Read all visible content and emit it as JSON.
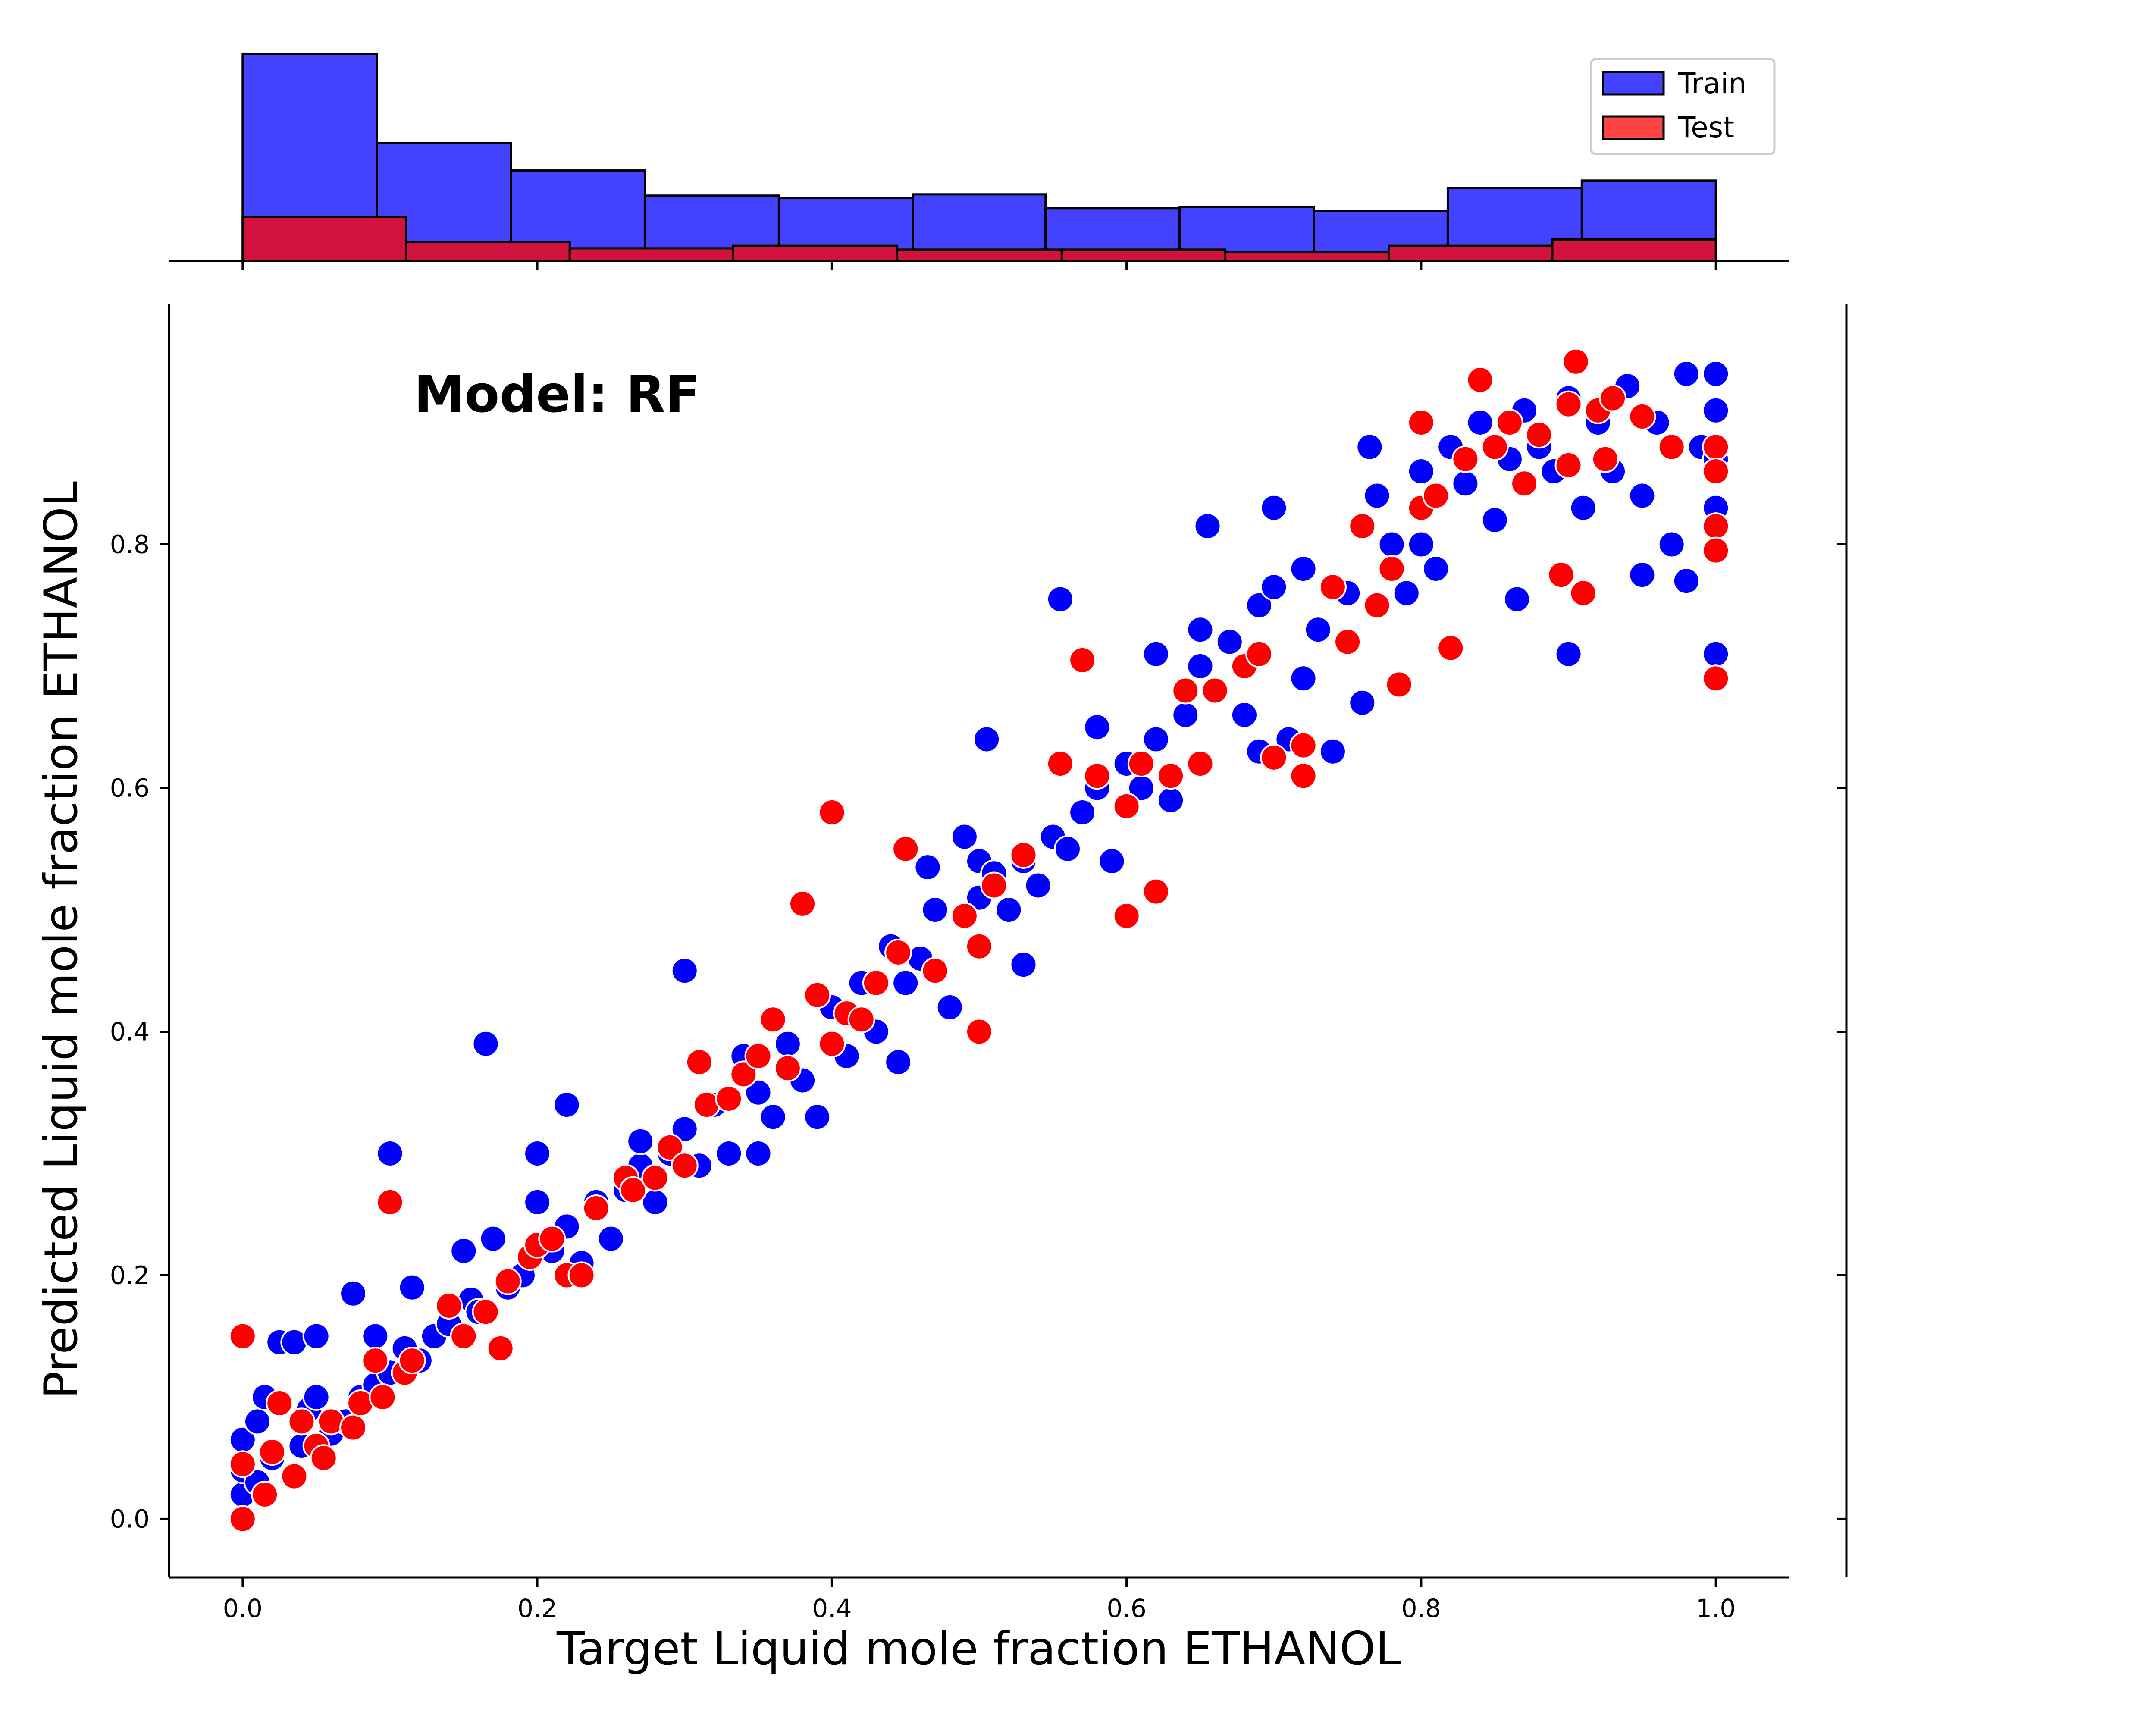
{
  "chart_data": {
    "type": "scatter",
    "annotation": "Model: RF",
    "xlabel": "Target Liquid mole fraction ETHANOL",
    "ylabel": "Predicted Liquid mole fraction ETHANOL",
    "xlim": [
      -0.05,
      1.05
    ],
    "ylim": [
      -0.048,
      0.997
    ],
    "x_ticks": [
      "0.0",
      "0.2",
      "0.4",
      "0.6",
      "0.8",
      "1.0"
    ],
    "y_ticks": [
      "0.0",
      "0.2",
      "0.4",
      "0.6",
      "0.8"
    ],
    "grid": false,
    "legend": {
      "position": "top-right",
      "entries": [
        "Train",
        "Test"
      ]
    },
    "colors": {
      "train": "#0000ff",
      "test": "#ff0000",
      "train_hist": "#4343ff",
      "test_hist": "#d3133e"
    },
    "series": [
      {
        "name": "Train",
        "points": [
          [
            0.0,
            0.02
          ],
          [
            0.0,
            0.04
          ],
          [
            0.0,
            0.065
          ],
          [
            0.01,
            0.03
          ],
          [
            0.01,
            0.08
          ],
          [
            0.015,
            0.1
          ],
          [
            0.02,
            0.05
          ],
          [
            0.025,
            0.145
          ],
          [
            0.035,
            0.145
          ],
          [
            0.04,
            0.06
          ],
          [
            0.045,
            0.09
          ],
          [
            0.05,
            0.1
          ],
          [
            0.05,
            0.15
          ],
          [
            0.06,
            0.07
          ],
          [
            0.07,
            0.08
          ],
          [
            0.075,
            0.185
          ],
          [
            0.08,
            0.1
          ],
          [
            0.09,
            0.15
          ],
          [
            0.09,
            0.11
          ],
          [
            0.1,
            0.3
          ],
          [
            0.1,
            0.12
          ],
          [
            0.11,
            0.14
          ],
          [
            0.115,
            0.19
          ],
          [
            0.12,
            0.13
          ],
          [
            0.13,
            0.15
          ],
          [
            0.14,
            0.16
          ],
          [
            0.15,
            0.22
          ],
          [
            0.155,
            0.18
          ],
          [
            0.16,
            0.17
          ],
          [
            0.165,
            0.39
          ],
          [
            0.17,
            0.23
          ],
          [
            0.18,
            0.19
          ],
          [
            0.19,
            0.2
          ],
          [
            0.2,
            0.3
          ],
          [
            0.2,
            0.26
          ],
          [
            0.21,
            0.22
          ],
          [
            0.22,
            0.34
          ],
          [
            0.22,
            0.24
          ],
          [
            0.23,
            0.21
          ],
          [
            0.24,
            0.26
          ],
          [
            0.25,
            0.23
          ],
          [
            0.26,
            0.27
          ],
          [
            0.27,
            0.29
          ],
          [
            0.27,
            0.31
          ],
          [
            0.28,
            0.26
          ],
          [
            0.29,
            0.3
          ],
          [
            0.3,
            0.45
          ],
          [
            0.3,
            0.32
          ],
          [
            0.31,
            0.29
          ],
          [
            0.32,
            0.34
          ],
          [
            0.33,
            0.3
          ],
          [
            0.34,
            0.38
          ],
          [
            0.35,
            0.3
          ],
          [
            0.35,
            0.35
          ],
          [
            0.36,
            0.33
          ],
          [
            0.37,
            0.39
          ],
          [
            0.38,
            0.36
          ],
          [
            0.39,
            0.33
          ],
          [
            0.4,
            0.42
          ],
          [
            0.41,
            0.38
          ],
          [
            0.42,
            0.44
          ],
          [
            0.43,
            0.4
          ],
          [
            0.44,
            0.47
          ],
          [
            0.445,
            0.375
          ],
          [
            0.45,
            0.44
          ],
          [
            0.46,
            0.46
          ],
          [
            0.465,
            0.535
          ],
          [
            0.47,
            0.5
          ],
          [
            0.48,
            0.42
          ],
          [
            0.49,
            0.56
          ],
          [
            0.5,
            0.54
          ],
          [
            0.5,
            0.51
          ],
          [
            0.505,
            0.64
          ],
          [
            0.51,
            0.53
          ],
          [
            0.52,
            0.5
          ],
          [
            0.53,
            0.455
          ],
          [
            0.53,
            0.54
          ],
          [
            0.54,
            0.52
          ],
          [
            0.55,
            0.56
          ],
          [
            0.555,
            0.755
          ],
          [
            0.56,
            0.55
          ],
          [
            0.57,
            0.58
          ],
          [
            0.58,
            0.6
          ],
          [
            0.58,
            0.65
          ],
          [
            0.59,
            0.54
          ],
          [
            0.6,
            0.62
          ],
          [
            0.61,
            0.6
          ],
          [
            0.62,
            0.64
          ],
          [
            0.62,
            0.71
          ],
          [
            0.63,
            0.59
          ],
          [
            0.64,
            0.66
          ],
          [
            0.65,
            0.7
          ],
          [
            0.65,
            0.73
          ],
          [
            0.655,
            0.815
          ],
          [
            0.66,
            0.68
          ],
          [
            0.67,
            0.72
          ],
          [
            0.68,
            0.66
          ],
          [
            0.69,
            0.75
          ],
          [
            0.69,
            0.63
          ],
          [
            0.7,
            0.765
          ],
          [
            0.7,
            0.83
          ],
          [
            0.71,
            0.64
          ],
          [
            0.72,
            0.69
          ],
          [
            0.72,
            0.78
          ],
          [
            0.73,
            0.73
          ],
          [
            0.74,
            0.63
          ],
          [
            0.75,
            0.76
          ],
          [
            0.76,
            0.67
          ],
          [
            0.765,
            0.88
          ],
          [
            0.77,
            0.84
          ],
          [
            0.78,
            0.8
          ],
          [
            0.79,
            0.76
          ],
          [
            0.8,
            0.86
          ],
          [
            0.8,
            0.8
          ],
          [
            0.81,
            0.78
          ],
          [
            0.82,
            0.88
          ],
          [
            0.83,
            0.85
          ],
          [
            0.84,
            0.9
          ],
          [
            0.85,
            0.82
          ],
          [
            0.86,
            0.87
          ],
          [
            0.865,
            0.755
          ],
          [
            0.87,
            0.91
          ],
          [
            0.88,
            0.88
          ],
          [
            0.89,
            0.86
          ],
          [
            0.9,
            0.71
          ],
          [
            0.9,
            0.92
          ],
          [
            0.91,
            0.83
          ],
          [
            0.92,
            0.9
          ],
          [
            0.93,
            0.86
          ],
          [
            0.94,
            0.93
          ],
          [
            0.95,
            0.84
          ],
          [
            0.95,
            0.775
          ],
          [
            0.96,
            0.9
          ],
          [
            0.97,
            0.8
          ],
          [
            0.98,
            0.77
          ],
          [
            0.98,
            0.94
          ],
          [
            0.99,
            0.88
          ],
          [
            1.0,
            0.94
          ],
          [
            1.0,
            0.91
          ],
          [
            1.0,
            0.87
          ],
          [
            1.0,
            0.83
          ],
          [
            1.0,
            0.71
          ]
        ]
      },
      {
        "name": "Test",
        "points": [
          [
            0.0,
            0.0
          ],
          [
            0.0,
            0.045
          ],
          [
            0.0,
            0.15
          ],
          [
            0.015,
            0.02
          ],
          [
            0.02,
            0.055
          ],
          [
            0.025,
            0.095
          ],
          [
            0.035,
            0.035
          ],
          [
            0.04,
            0.08
          ],
          [
            0.05,
            0.06
          ],
          [
            0.055,
            0.05
          ],
          [
            0.06,
            0.08
          ],
          [
            0.075,
            0.075
          ],
          [
            0.08,
            0.095
          ],
          [
            0.09,
            0.13
          ],
          [
            0.095,
            0.1
          ],
          [
            0.1,
            0.26
          ],
          [
            0.11,
            0.12
          ],
          [
            0.115,
            0.13
          ],
          [
            0.14,
            0.175
          ],
          [
            0.15,
            0.15
          ],
          [
            0.165,
            0.17
          ],
          [
            0.175,
            0.14
          ],
          [
            0.18,
            0.195
          ],
          [
            0.195,
            0.215
          ],
          [
            0.2,
            0.225
          ],
          [
            0.21,
            0.23
          ],
          [
            0.22,
            0.2
          ],
          [
            0.23,
            0.2
          ],
          [
            0.24,
            0.255
          ],
          [
            0.26,
            0.28
          ],
          [
            0.265,
            0.27
          ],
          [
            0.28,
            0.28
          ],
          [
            0.29,
            0.305
          ],
          [
            0.3,
            0.29
          ],
          [
            0.31,
            0.375
          ],
          [
            0.315,
            0.34
          ],
          [
            0.33,
            0.345
          ],
          [
            0.34,
            0.365
          ],
          [
            0.35,
            0.38
          ],
          [
            0.36,
            0.41
          ],
          [
            0.37,
            0.37
          ],
          [
            0.38,
            0.505
          ],
          [
            0.39,
            0.43
          ],
          [
            0.4,
            0.58
          ],
          [
            0.4,
            0.39
          ],
          [
            0.41,
            0.415
          ],
          [
            0.42,
            0.41
          ],
          [
            0.43,
            0.44
          ],
          [
            0.445,
            0.465
          ],
          [
            0.45,
            0.55
          ],
          [
            0.47,
            0.45
          ],
          [
            0.49,
            0.495
          ],
          [
            0.5,
            0.4
          ],
          [
            0.5,
            0.47
          ],
          [
            0.51,
            0.52
          ],
          [
            0.53,
            0.545
          ],
          [
            0.555,
            0.62
          ],
          [
            0.57,
            0.705
          ],
          [
            0.58,
            0.61
          ],
          [
            0.6,
            0.495
          ],
          [
            0.6,
            0.585
          ],
          [
            0.61,
            0.62
          ],
          [
            0.62,
            0.515
          ],
          [
            0.63,
            0.61
          ],
          [
            0.64,
            0.68
          ],
          [
            0.65,
            0.62
          ],
          [
            0.66,
            0.68
          ],
          [
            0.68,
            0.7
          ],
          [
            0.69,
            0.71
          ],
          [
            0.7,
            0.625
          ],
          [
            0.72,
            0.635
          ],
          [
            0.72,
            0.61
          ],
          [
            0.74,
            0.765
          ],
          [
            0.75,
            0.72
          ],
          [
            0.76,
            0.815
          ],
          [
            0.77,
            0.75
          ],
          [
            0.78,
            0.78
          ],
          [
            0.785,
            0.685
          ],
          [
            0.8,
            0.9
          ],
          [
            0.8,
            0.83
          ],
          [
            0.81,
            0.84
          ],
          [
            0.82,
            0.715
          ],
          [
            0.83,
            0.87
          ],
          [
            0.84,
            0.935
          ],
          [
            0.85,
            0.88
          ],
          [
            0.86,
            0.9
          ],
          [
            0.87,
            0.85
          ],
          [
            0.88,
            0.89
          ],
          [
            0.895,
            0.775
          ],
          [
            0.9,
            0.865
          ],
          [
            0.9,
            0.915
          ],
          [
            0.905,
            0.95
          ],
          [
            0.91,
            0.76
          ],
          [
            0.92,
            0.91
          ],
          [
            0.925,
            0.87
          ],
          [
            0.93,
            0.92
          ],
          [
            0.95,
            0.905
          ],
          [
            0.97,
            0.88
          ],
          [
            1.0,
            0.88
          ],
          [
            1.0,
            0.86
          ],
          [
            1.0,
            0.815
          ],
          [
            1.0,
            0.795
          ],
          [
            1.0,
            0.69
          ]
        ]
      }
    ],
    "marginal_histogram": {
      "train_bins": {
        "edges": [
          0.0,
          0.091,
          0.182,
          0.273,
          0.364,
          0.455,
          0.545,
          0.636,
          0.727,
          0.818,
          0.909,
          1.0
        ],
        "counts": [
          165,
          94,
          72,
          52,
          50,
          53,
          42,
          43,
          40,
          58,
          64
        ]
      },
      "test_bins": {
        "edges": [
          0.0,
          0.111,
          0.222,
          0.333,
          0.444,
          0.556,
          0.667,
          0.778,
          0.889,
          1.0
        ],
        "counts": [
          35,
          15,
          10,
          12,
          9,
          9,
          7,
          12,
          17
        ]
      }
    }
  }
}
